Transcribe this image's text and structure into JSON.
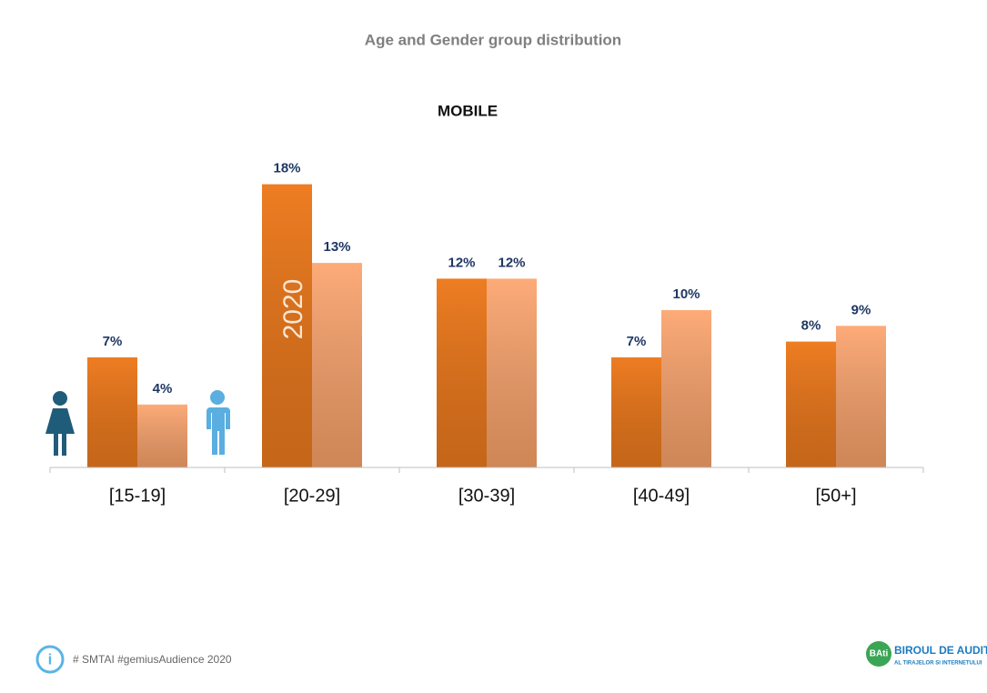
{
  "title": "Age and Gender group distribution",
  "chart_data": {
    "type": "bar",
    "title": "MOBILE",
    "annotation": "2020",
    "categories": [
      "[15-19]",
      "[20-29]",
      "[30-39]",
      "[40-49]",
      "[50+]"
    ],
    "series": [
      {
        "color": "#ee7d22",
        "values": [
          7,
          18,
          12,
          7,
          8
        ],
        "value_labels": [
          "7%",
          "18%",
          "12%",
          "7%",
          "8%"
        ]
      },
      {
        "color": "#fdab78",
        "values": [
          4,
          13,
          12,
          10,
          9
        ],
        "value_labels": [
          "4%",
          "13%",
          "12%",
          "10%",
          "9%"
        ]
      }
    ]
  },
  "footer": {
    "hashtags": "# SMTAI #gemiusAudience 2020",
    "logo_mark": "BAti",
    "logo_title": "BIROUL DE AUDIT",
    "logo_subtitle": "AL TIRAJELOR SI INTERNETULUI"
  }
}
